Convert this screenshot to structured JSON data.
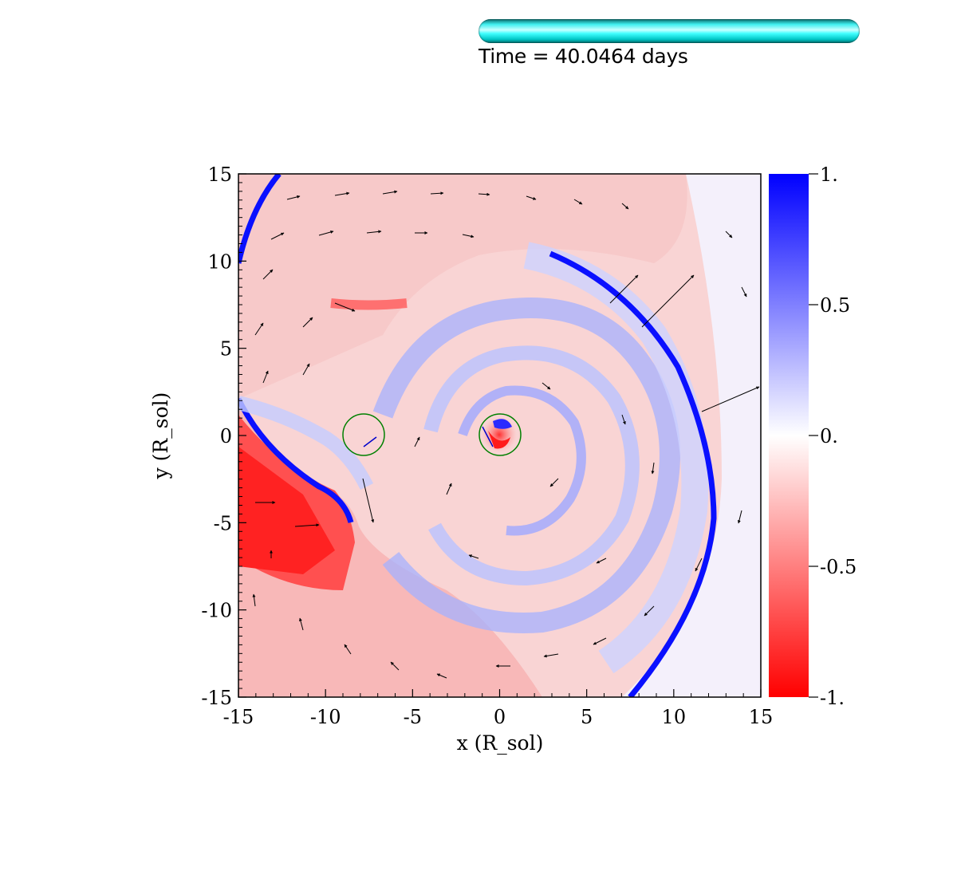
{
  "header": {
    "time_text": "Time = 40.0464 days",
    "time_bar_color": "#00ffff"
  },
  "chart_data": {
    "type": "heatmap",
    "title": "",
    "xlabel": "x (R_sol)",
    "ylabel": "y (R_sol)",
    "xlim": [
      -15,
      15
    ],
    "ylim": [
      -15,
      15
    ],
    "x_ticks": [
      -15,
      -10,
      -5,
      0,
      5,
      10,
      15
    ],
    "y_ticks": [
      -15,
      -10,
      -5,
      0,
      5,
      10,
      15
    ],
    "x_tick_labels": [
      "-15",
      "-10",
      "-5",
      "0",
      "5",
      "10",
      "15"
    ],
    "y_tick_labels": [
      "-15",
      "-10",
      "-5",
      "0",
      "5",
      "10",
      "15"
    ],
    "colorbar": {
      "min": -1,
      "max": 1,
      "ticks": [
        1,
        0.5,
        0,
        -0.5,
        -1
      ],
      "tick_labels": [
        "1.",
        "0.5",
        "0.",
        "-0.5",
        "-1."
      ],
      "colors": {
        "max": "#0000ff",
        "mid": "#ffffff",
        "min": "#ff0000"
      }
    },
    "markers": [
      {
        "name": "left-star-circle",
        "x": -7.8,
        "y": 0,
        "r": 1.2,
        "color": "#008000"
      },
      {
        "name": "right-star-circle",
        "x": 0,
        "y": 0,
        "r": 1.2,
        "color": "#008000"
      }
    ],
    "vector_field": "velocity arrows",
    "grid": false
  }
}
